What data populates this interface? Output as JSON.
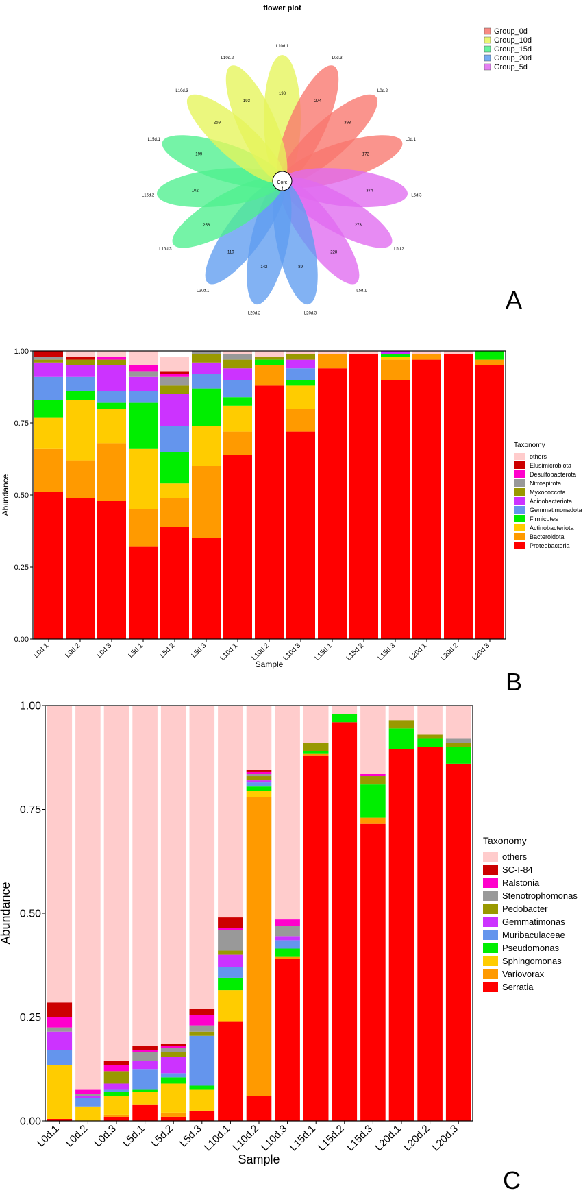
{
  "chart_data": [
    {
      "type": "flower",
      "panel": "A",
      "title": "flower plot",
      "core_label": "Core",
      "core_value": 4,
      "legend_entries": [
        "Group_0d",
        "Group_10d",
        "Group_15d",
        "Group_20d",
        "Group_5d"
      ],
      "group_colors": {
        "Group_0d": "#f8766d",
        "Group_10d": "#e5f55a",
        "Group_15d": "#4ef08e",
        "Group_20d": "#5f9cf0",
        "Group_5d": "#e06af0"
      },
      "petals": [
        {
          "sample": "L10d.1",
          "value": 198,
          "group": "Group_10d"
        },
        {
          "sample": "L0d.3",
          "value": 274,
          "group": "Group_0d"
        },
        {
          "sample": "L0d.2",
          "value": 398,
          "group": "Group_0d"
        },
        {
          "sample": "L0d.1",
          "value": 172,
          "group": "Group_0d"
        },
        {
          "sample": "L5d.3",
          "value": 374,
          "group": "Group_5d"
        },
        {
          "sample": "L5d.2",
          "value": 273,
          "group": "Group_5d"
        },
        {
          "sample": "L5d.1",
          "value": 228,
          "group": "Group_5d"
        },
        {
          "sample": "L20d.3",
          "value": 89,
          "group": "Group_20d"
        },
        {
          "sample": "L20d.2",
          "value": 142,
          "group": "Group_20d"
        },
        {
          "sample": "L20d.1",
          "value": 119,
          "group": "Group_20d"
        },
        {
          "sample": "L15d.3",
          "value": 256,
          "group": "Group_15d"
        },
        {
          "sample": "L15d.2",
          "value": 102,
          "group": "Group_15d"
        },
        {
          "sample": "L15d.1",
          "value": 199,
          "group": "Group_15d"
        },
        {
          "sample": "L10d.3",
          "value": 259,
          "group": "Group_10d"
        },
        {
          "sample": "L10d.2",
          "value": 193,
          "group": "Group_10d"
        }
      ]
    },
    {
      "type": "bar",
      "stacked": true,
      "panel": "B",
      "xlabel": "Sample",
      "ylabel": "Abundance",
      "ylim": [
        0,
        1
      ],
      "yticks": [
        "0.00",
        "0.25",
        "0.50",
        "0.75",
        "1.00"
      ],
      "legend_title": "Taxonomy",
      "categories": [
        "L0d.1",
        "L0d.2",
        "L0d.3",
        "L5d.1",
        "L5d.2",
        "L5d.3",
        "L10d.1",
        "L10d.2",
        "L10d.3",
        "L15d.1",
        "L15d.2",
        "L15d.3",
        "L20d.1",
        "L20d.2",
        "L20d.3"
      ],
      "series": [
        {
          "name": "Proteobacteria",
          "color": "#ff0000",
          "values": [
            0.51,
            0.49,
            0.48,
            0.32,
            0.39,
            0.35,
            0.64,
            0.88,
            0.72,
            0.94,
            0.99,
            0.9,
            0.97,
            0.99,
            0.95
          ]
        },
        {
          "name": "Bacteroidota",
          "color": "#ff9a00",
          "values": [
            0.15,
            0.13,
            0.2,
            0.13,
            0.1,
            0.25,
            0.08,
            0.07,
            0.08,
            0.05,
            0.0,
            0.07,
            0.02,
            0.0,
            0.02
          ]
        },
        {
          "name": "Actinobacteriota",
          "color": "#ffcc00",
          "values": [
            0.11,
            0.21,
            0.12,
            0.21,
            0.05,
            0.14,
            0.09,
            0.0,
            0.08,
            0.0,
            0.0,
            0.01,
            0.0,
            0.0,
            0.0
          ]
        },
        {
          "name": "Firmicutes",
          "color": "#00ee00",
          "values": [
            0.06,
            0.03,
            0.02,
            0.16,
            0.11,
            0.13,
            0.03,
            0.02,
            0.02,
            0.0,
            0.0,
            0.01,
            0.0,
            0.0,
            0.03
          ]
        },
        {
          "name": "Gemmatimonadota",
          "color": "#6495ed",
          "values": [
            0.08,
            0.05,
            0.04,
            0.04,
            0.09,
            0.05,
            0.06,
            0.0,
            0.04,
            0.0,
            0.0,
            0.0,
            0.0,
            0.0,
            0.0
          ]
        },
        {
          "name": "Acidobacteriota",
          "color": "#cc33ff",
          "values": [
            0.05,
            0.04,
            0.09,
            0.05,
            0.11,
            0.04,
            0.04,
            0.0,
            0.03,
            0.0,
            0.0,
            0.01,
            0.0,
            0.0,
            0.0
          ]
        },
        {
          "name": "Myxococcota",
          "color": "#999900",
          "values": [
            0.01,
            0.02,
            0.02,
            0.0,
            0.03,
            0.03,
            0.03,
            0.01,
            0.02,
            0.0,
            0.0,
            0.0,
            0.0,
            0.0,
            0.0
          ]
        },
        {
          "name": "Nitrospirota",
          "color": "#999999",
          "values": [
            0.01,
            0.0,
            0.0,
            0.02,
            0.03,
            0.01,
            0.02,
            0.0,
            0.0,
            0.0,
            0.0,
            0.0,
            0.0,
            0.0,
            0.0
          ]
        },
        {
          "name": "Desulfobacterota",
          "color": "#ff00cc",
          "values": [
            0.0,
            0.0,
            0.01,
            0.02,
            0.01,
            0.0,
            0.0,
            0.0,
            0.0,
            0.0,
            0.0,
            0.0,
            0.0,
            0.0,
            0.0
          ]
        },
        {
          "name": "Elusimicrobiota",
          "color": "#cc0000",
          "values": [
            0.02,
            0.01,
            0.0,
            0.0,
            0.01,
            0.0,
            0.0,
            0.0,
            0.0,
            0.0,
            0.0,
            0.0,
            0.0,
            0.0,
            0.0
          ]
        },
        {
          "name": "others",
          "color": "#ffcccc",
          "values": [
            0.0,
            0.02,
            0.02,
            0.05,
            0.05,
            0.0,
            0.01,
            0.02,
            0.01,
            0.01,
            0.01,
            0.0,
            0.01,
            0.01,
            0.0
          ]
        }
      ]
    },
    {
      "type": "bar",
      "stacked": true,
      "panel": "C",
      "xlabel": "Sample",
      "ylabel": "Abundance",
      "ylim": [
        0,
        1
      ],
      "yticks": [
        "0.00",
        "0.25",
        "0.50",
        "0.75",
        "1.00"
      ],
      "legend_title": "Taxonomy",
      "categories": [
        "L0d.1",
        "L0d.2",
        "L0d.3",
        "L5d.1",
        "L5d.2",
        "L5d.3",
        "L10d.1",
        "L10d.2",
        "L10d.3",
        "L15d.1",
        "L15d.2",
        "L15d.3",
        "L20d.1",
        "L20d.2",
        "L20d.3"
      ],
      "series": [
        {
          "name": "Serratia",
          "color": "#ff0000",
          "values": [
            0.005,
            0.0,
            0.01,
            0.04,
            0.01,
            0.025,
            0.24,
            0.06,
            0.39,
            0.88,
            0.96,
            0.715,
            0.895,
            0.9,
            0.86
          ]
        },
        {
          "name": "Variovorax",
          "color": "#ff9a00",
          "values": [
            0.0,
            0.0,
            0.005,
            0.0,
            0.01,
            0.0,
            0.0,
            0.72,
            0.005,
            0.005,
            0.0,
            0.015,
            0.0,
            0.0,
            0.0
          ]
        },
        {
          "name": "Sphingomonas",
          "color": "#ffcc00",
          "values": [
            0.13,
            0.035,
            0.045,
            0.03,
            0.07,
            0.05,
            0.075,
            0.015,
            0.0,
            0.0,
            0.0,
            0.0,
            0.0,
            0.0,
            0.0
          ]
        },
        {
          "name": "Pseudomonas",
          "color": "#00ee00",
          "values": [
            0.0,
            0.0,
            0.01,
            0.005,
            0.015,
            0.01,
            0.03,
            0.01,
            0.02,
            0.005,
            0.02,
            0.08,
            0.05,
            0.02,
            0.04
          ]
        },
        {
          "name": "Muribaculaceae",
          "color": "#6495ed",
          "values": [
            0.035,
            0.02,
            0.005,
            0.05,
            0.01,
            0.12,
            0.025,
            0.01,
            0.02,
            0.0,
            0.0,
            0.0,
            0.0,
            0.0,
            0.0
          ]
        },
        {
          "name": "Gemmatimonas",
          "color": "#cc33ff",
          "values": [
            0.045,
            0.005,
            0.015,
            0.02,
            0.04,
            0.0,
            0.03,
            0.005,
            0.01,
            0.0,
            0.0,
            0.0,
            0.0,
            0.0,
            0.0
          ]
        },
        {
          "name": "Pedobacter",
          "color": "#999900",
          "values": [
            0.0,
            0.0,
            0.03,
            0.0,
            0.01,
            0.01,
            0.01,
            0.01,
            0.0,
            0.02,
            0.0,
            0.02,
            0.02,
            0.01,
            0.01
          ]
        },
        {
          "name": "Stenotrophomonas",
          "color": "#999999",
          "values": [
            0.01,
            0.005,
            0.0,
            0.02,
            0.01,
            0.015,
            0.05,
            0.005,
            0.025,
            0.0,
            0.0,
            0.0,
            0.0,
            0.0,
            0.01
          ]
        },
        {
          "name": "Ralstonia",
          "color": "#ff00cc",
          "values": [
            0.025,
            0.01,
            0.015,
            0.005,
            0.005,
            0.025,
            0.005,
            0.005,
            0.015,
            0.0,
            0.0,
            0.005,
            0.0,
            0.0,
            0.0
          ]
        },
        {
          "name": "SC-I-84",
          "color": "#cc0000",
          "values": [
            0.035,
            0.0,
            0.01,
            0.01,
            0.005,
            0.015,
            0.025,
            0.005,
            0.0,
            0.0,
            0.0,
            0.0,
            0.0,
            0.0,
            0.0
          ]
        },
        {
          "name": "others",
          "color": "#ffcccc",
          "values": [
            0.715,
            0.925,
            0.855,
            0.82,
            0.815,
            0.73,
            0.51,
            0.155,
            0.515,
            0.09,
            0.02,
            0.165,
            0.035,
            0.07,
            0.08
          ]
        }
      ]
    }
  ],
  "panel_labels": {
    "a": "A",
    "b": "B",
    "c": "C"
  }
}
